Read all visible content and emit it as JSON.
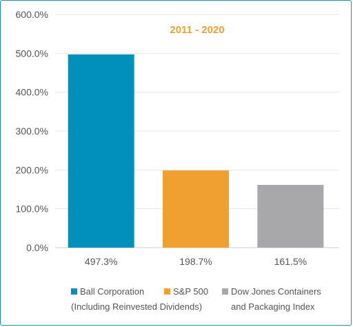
{
  "chart_data": {
    "type": "bar",
    "title": "2011 - 2020",
    "title_color": "#f0a030",
    "categories": [
      "Ball Corporation",
      "S&P 500",
      "Dow Jones Containers and Packaging Index"
    ],
    "values": [
      497.3,
      198.7,
      161.5
    ],
    "data_labels": [
      "497.3%",
      "198.7%",
      "161.5%"
    ],
    "colors": [
      "#0090bb",
      "#f0a030",
      "#a8a8aa"
    ],
    "ylim": [
      0,
      600
    ],
    "yticks": [
      0,
      100,
      200,
      300,
      400,
      500,
      600
    ],
    "ytick_labels": [
      "0.0%",
      "100.0%",
      "200.0%",
      "300.0%",
      "400.0%",
      "500.0%",
      "600.0%"
    ],
    "grid": true,
    "legend_position": "bottom",
    "legend": [
      {
        "label": "Ball Corporation",
        "line2": "(Including Reinvested Dividends)",
        "color": "#0090bb"
      },
      {
        "label": "S&P 500",
        "line2": "",
        "color": "#f0a030"
      },
      {
        "label": "Dow Jones Containers",
        "line2": "and Packaging Index",
        "color": "#a8a8aa"
      }
    ]
  }
}
